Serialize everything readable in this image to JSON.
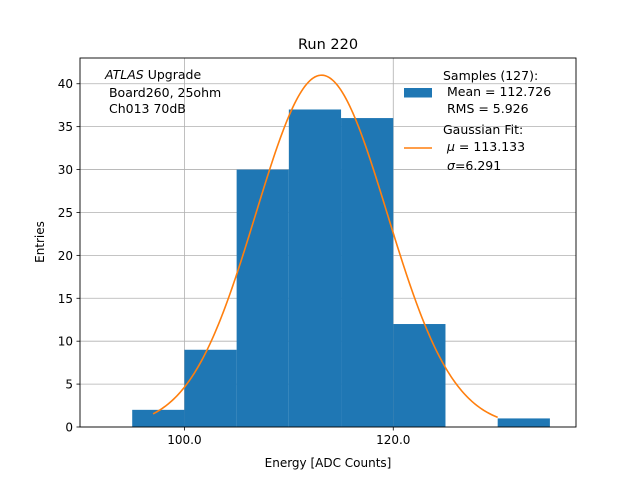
{
  "chart_data": {
    "type": "bar",
    "title": "Run 220",
    "xlabel": "Energy [ADC Counts]",
    "ylabel": "Entries",
    "xlim": [
      90,
      137.5
    ],
    "ylim": [
      0,
      43
    ],
    "grid": true,
    "x_ticks": [
      100.0,
      120.0
    ],
    "x_tick_labels": [
      "100.0",
      "120.0"
    ],
    "y_ticks": [
      0,
      5,
      10,
      15,
      20,
      25,
      30,
      35,
      40
    ],
    "y_tick_labels": [
      "0",
      "5",
      "10",
      "15",
      "20",
      "25",
      "30",
      "35",
      "40"
    ],
    "histogram": {
      "name": "Samples (127)",
      "color": "#1f77b4",
      "bins": [
        {
          "x0": 95,
          "x1": 100,
          "count": 2
        },
        {
          "x0": 100,
          "x1": 105,
          "count": 9
        },
        {
          "x0": 105,
          "x1": 110,
          "count": 30
        },
        {
          "x0": 110,
          "x1": 115,
          "count": 37
        },
        {
          "x0": 115,
          "x1": 120,
          "count": 36
        },
        {
          "x0": 120,
          "x1": 125,
          "count": 12
        },
        {
          "x0": 130,
          "x1": 135,
          "count": 1
        }
      ]
    },
    "fit": {
      "name": "Gaussian Fit",
      "color": "#ff7f0e",
      "amplitude": 41.0,
      "mu": 113.133,
      "sigma": 6.291,
      "x_range": [
        97,
        130
      ]
    },
    "annotation": {
      "italic": "ATLAS",
      "line1_rest": " Upgrade",
      "line2": " Board260, 25ohm",
      "line3": " Ch013 70dB"
    },
    "legend": {
      "position": "top-right",
      "samples_title": "Samples (127):",
      "samples_mean": " Mean = 112.726",
      "samples_rms": " RMS = 5.926",
      "fit_title": "Gaussian Fit:",
      "fit_mu_symbol": "μ",
      "fit_mu_text": " = 113.133",
      "fit_sigma_symbol": "σ",
      "fit_sigma_text": "=6.291"
    }
  }
}
